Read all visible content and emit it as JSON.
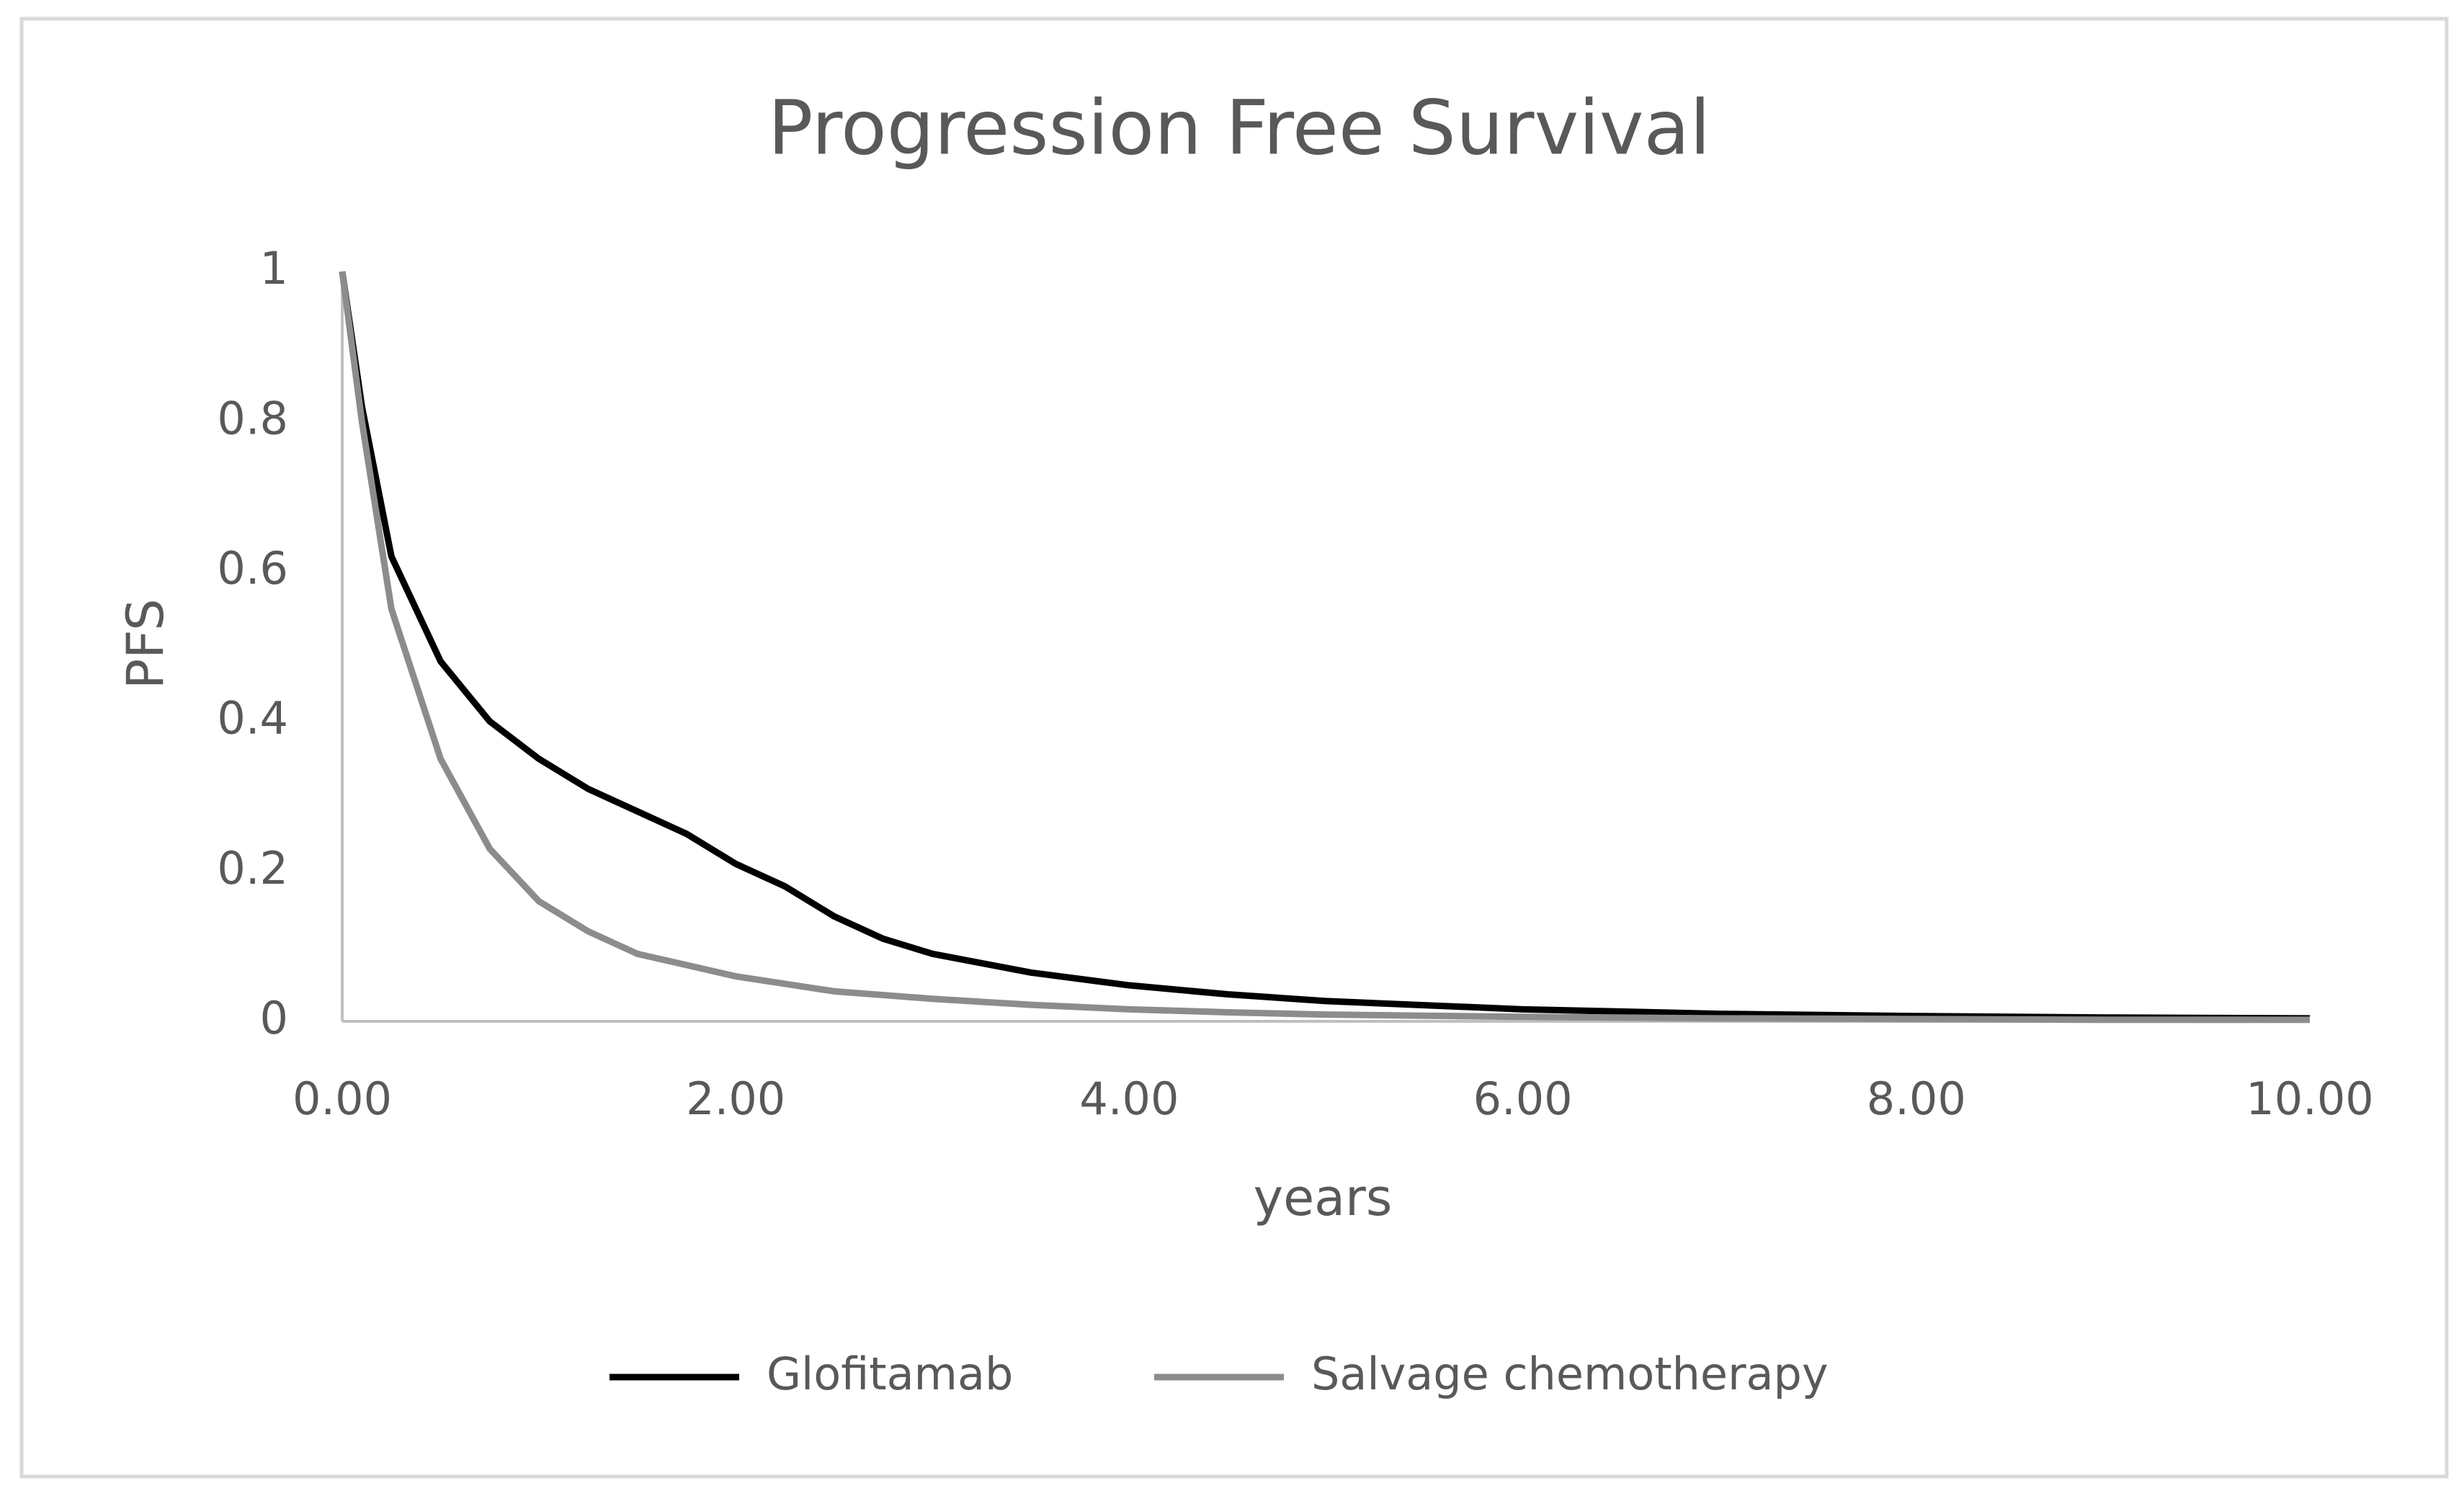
{
  "chart_data": {
    "type": "line",
    "title": "Progression Free Survival",
    "x_label": "years",
    "y_label": "PFS",
    "x": [
      0,
      0.1,
      0.25,
      0.5,
      0.75,
      1,
      1.25,
      1.5,
      1.75,
      2,
      2.25,
      2.5,
      2.75,
      3,
      3.5,
      4,
      4.5,
      5,
      6,
      7,
      8,
      9,
      10
    ],
    "series": [
      {
        "name": "Glofitamab",
        "color": "#000000",
        "values": [
          1,
          0.82,
          0.62,
          0.48,
          0.4,
          0.35,
          0.31,
          0.28,
          0.25,
          0.21,
          0.18,
          0.14,
          0.11,
          0.09,
          0.065,
          0.048,
          0.036,
          0.027,
          0.016,
          0.01,
          0.007,
          0.005,
          0.004
        ]
      },
      {
        "name": "Salvage chemotherapy",
        "color": "#8c8c8c",
        "values": [
          1,
          0.8,
          0.55,
          0.35,
          0.23,
          0.16,
          0.12,
          0.09,
          0.075,
          0.06,
          0.05,
          0.04,
          0.035,
          0.03,
          0.022,
          0.016,
          0.012,
          0.009,
          0.006,
          0.004,
          0.003,
          0.002,
          0.002
        ]
      }
    ],
    "xlim": [
      0,
      10
    ],
    "xticks": [
      {
        "value": 0,
        "label": "0.00"
      },
      {
        "value": 2,
        "label": "2.00"
      },
      {
        "value": 4,
        "label": "4.00"
      },
      {
        "value": 6,
        "label": "6.00"
      },
      {
        "value": 8,
        "label": "8.00"
      },
      {
        "value": 10,
        "label": "10.00"
      }
    ],
    "ylim": [
      0,
      1
    ],
    "yticks": [
      0,
      0.2,
      0.4,
      0.6,
      0.8,
      1
    ],
    "grid": false,
    "legend": "bottom"
  }
}
